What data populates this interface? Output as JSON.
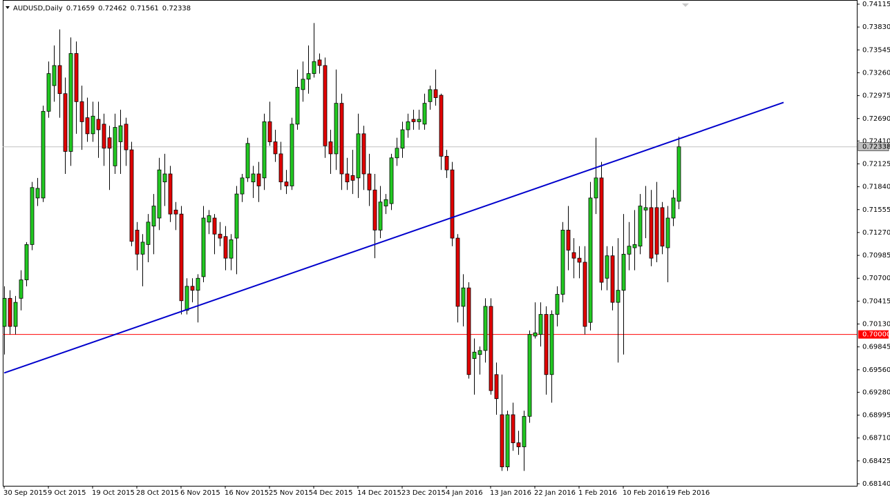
{
  "chart_data": {
    "type": "candlestick",
    "title": "AUDUSD,Daily",
    "up_color": "#22c822",
    "down_color": "#e00000",
    "categories": [
      "30 Sep 2015",
      null,
      null,
      null,
      null,
      null,
      null,
      null,
      "9 Oct 2015",
      null,
      null,
      null,
      null,
      null,
      null,
      null,
      "19 Oct 2015",
      null,
      null,
      null,
      null,
      null,
      null,
      null,
      "28 Oct 2015",
      null,
      null,
      null,
      null,
      null,
      null,
      null,
      "6 Nov 2015",
      null,
      null,
      null,
      null,
      null,
      null,
      null,
      "16 Nov 2015",
      null,
      null,
      null,
      null,
      null,
      null,
      null,
      "25 Nov 2015",
      null,
      null,
      null,
      null,
      null,
      null,
      null,
      "4 Dec 2015",
      null,
      null,
      null,
      null,
      null,
      null,
      null,
      "14 Dec 2015",
      null,
      null,
      null,
      null,
      null,
      null,
      null,
      "23 Dec 2015",
      null,
      null,
      null,
      null,
      null,
      null,
      null,
      "4 Jan 2016",
      null,
      null,
      null,
      null,
      null,
      null,
      null,
      "13 Jan 2016",
      null,
      null,
      null,
      null,
      null,
      null,
      null,
      "22 Jan 2016",
      null,
      null,
      null,
      null,
      null,
      null,
      null,
      "1 Feb 2016",
      null,
      null,
      null,
      null,
      null,
      null,
      null,
      "10 Feb 2016",
      null,
      null,
      null,
      null,
      null,
      null,
      null,
      "19 Feb 2016",
      null,
      null
    ],
    "open": [
      0.701,
      0.7045,
      0.701,
      0.7045,
      0.7068,
      0.7112,
      0.717,
      0.717,
      0.7278,
      0.731,
      0.7335,
      0.73,
      0.7228,
      0.735,
      0.729,
      0.727,
      0.725,
      0.7268,
      0.7262,
      0.7245,
      0.721,
      0.724,
      0.7262,
      0.723,
      0.713,
      0.71,
      0.7112,
      0.7135,
      0.7145,
      0.719,
      0.72,
      0.7155,
      0.715,
      0.703,
      0.706,
      0.7055,
      0.7072,
      0.714,
      0.7145,
      0.7125,
      0.7122,
      0.7095,
      0.712,
      0.7175,
      0.7195,
      0.719,
      0.72,
      0.7195,
      0.7265,
      0.724,
      0.7225,
      0.719,
      0.7185,
      0.7262,
      0.7305,
      0.7318,
      0.7325,
      0.7342,
      0.7335,
      0.724,
      0.7225,
      0.7288,
      0.72,
      0.7198,
      0.7195,
      0.725,
      0.72,
      0.718,
      0.713,
      0.716,
      0.7163,
      0.722,
      0.7232,
      0.7255,
      0.7268,
      0.7265,
      0.7262,
      0.729,
      0.7305,
      0.7298,
      0.7222,
      0.7205,
      0.712,
      0.7035,
      0.7058,
      0.697,
      0.6975,
      0.698,
      0.7035,
      0.695,
      0.69,
      0.6835,
      0.69,
      0.6865,
      0.686,
      0.6898,
      0.6998,
      0.7,
      0.7025,
      0.695,
      0.7025,
      0.705,
      0.713,
      0.7102,
      0.7095,
      0.709,
      0.7015,
      0.717,
      0.7195,
      0.707,
      0.7098,
      0.704,
      0.7055,
      0.71,
      0.7108,
      0.711,
      0.7155,
      0.7158,
      0.7158,
      0.7158,
      0.7108,
      0.7145,
      0.71659
    ],
    "high": [
      0.706,
      0.7055,
      0.7048,
      0.708,
      0.7115,
      0.719,
      0.7195,
      0.7285,
      0.734,
      0.736,
      0.738,
      0.732,
      0.737,
      0.7365,
      0.731,
      0.7295,
      0.729,
      0.729,
      0.7275,
      0.726,
      0.7275,
      0.728,
      0.727,
      0.724,
      0.714,
      0.7125,
      0.715,
      0.7175,
      0.722,
      0.7225,
      0.721,
      0.7165,
      0.716,
      0.707,
      0.707,
      0.7075,
      0.716,
      0.7155,
      0.715,
      0.714,
      0.7135,
      0.7125,
      0.7185,
      0.72,
      0.7245,
      0.721,
      0.7215,
      0.7275,
      0.729,
      0.7255,
      0.724,
      0.7205,
      0.727,
      0.733,
      0.734,
      0.736,
      0.7388,
      0.735,
      0.7345,
      0.7255,
      0.733,
      0.73,
      0.722,
      0.723,
      0.7275,
      0.726,
      0.7225,
      0.72,
      0.7185,
      0.7175,
      0.7225,
      0.7245,
      0.7265,
      0.7275,
      0.728,
      0.728,
      0.73,
      0.731,
      0.733,
      0.73,
      0.723,
      0.7215,
      0.7125,
      0.7075,
      0.7065,
      0.6995,
      0.6985,
      0.7045,
      0.7045,
      0.6965,
      0.695,
      0.6905,
      0.6915,
      0.688,
      0.6905,
      0.7005,
      0.704,
      0.704,
      0.7035,
      0.703,
      0.706,
      0.714,
      0.716,
      0.712,
      0.711,
      0.711,
      0.719,
      0.7245,
      0.7215,
      0.711,
      0.711,
      0.712,
      0.715,
      0.714,
      0.7155,
      0.7175,
      0.7185,
      0.718,
      0.719,
      0.7165,
      0.716,
      0.718,
      0.72462
    ],
    "low": [
      0.6975,
      0.7,
      0.7,
      0.703,
      0.706,
      0.7105,
      0.716,
      0.7165,
      0.727,
      0.729,
      0.727,
      0.72,
      0.721,
      0.725,
      0.723,
      0.724,
      0.724,
      0.722,
      0.721,
      0.718,
      0.72,
      0.72,
      0.721,
      0.711,
      0.708,
      0.706,
      0.709,
      0.71,
      0.713,
      0.716,
      0.714,
      0.713,
      0.7025,
      0.7025,
      0.704,
      0.7015,
      0.7065,
      0.7125,
      0.71,
      0.711,
      0.708,
      0.708,
      0.7075,
      0.7165,
      0.719,
      0.717,
      0.7165,
      0.718,
      0.7235,
      0.7215,
      0.718,
      0.7175,
      0.718,
      0.7255,
      0.729,
      0.73,
      0.732,
      0.7325,
      0.722,
      0.72,
      0.7205,
      0.718,
      0.718,
      0.7175,
      0.717,
      0.718,
      0.716,
      0.7095,
      0.712,
      0.715,
      0.7155,
      0.721,
      0.722,
      0.7245,
      0.7255,
      0.7255,
      0.7255,
      0.728,
      0.7285,
      0.7205,
      0.7195,
      0.711,
      0.7015,
      0.701,
      0.6945,
      0.6925,
      0.695,
      0.6965,
      0.6925,
      0.69,
      0.683,
      0.683,
      0.6855,
      0.685,
      0.683,
      0.689,
      0.6995,
      0.6985,
      0.6925,
      0.6915,
      0.701,
      0.704,
      0.708,
      0.707,
      0.707,
      0.7,
      0.7005,
      0.715,
      0.7055,
      0.7055,
      0.703,
      0.6965,
      0.6975,
      0.708,
      0.708,
      0.71,
      0.712,
      0.7085,
      0.709,
      0.71,
      0.7065,
      0.7135,
      0.71561
    ],
    "close": [
      0.7045,
      0.701,
      0.704,
      0.7068,
      0.7112,
      0.7183,
      0.7182,
      0.7278,
      0.7325,
      0.7335,
      0.73,
      0.7228,
      0.735,
      0.729,
      0.7265,
      0.725,
      0.7272,
      0.7255,
      0.7232,
      0.7232,
      0.7258,
      0.726,
      0.723,
      0.7116,
      0.71,
      0.7115,
      0.714,
      0.716,
      0.7205,
      0.72,
      0.715,
      0.715,
      0.7042,
      0.706,
      0.7055,
      0.707,
      0.7145,
      0.7148,
      0.7125,
      0.712,
      0.7095,
      0.7118,
      0.7175,
      0.7195,
      0.7238,
      0.72,
      0.7185,
      0.7265,
      0.724,
      0.7225,
      0.719,
      0.7185,
      0.7262,
      0.7308,
      0.7318,
      0.7325,
      0.734,
      0.7335,
      0.7235,
      0.7225,
      0.7288,
      0.72,
      0.719,
      0.7192,
      0.725,
      0.72,
      0.718,
      0.713,
      0.7165,
      0.7168,
      0.722,
      0.7232,
      0.7255,
      0.7265,
      0.7265,
      0.7268,
      0.7288,
      0.7305,
      0.7295,
      0.7222,
      0.7205,
      0.712,
      0.7035,
      0.7058,
      0.695,
      0.6978,
      0.698,
      0.7035,
      0.693,
      0.692,
      0.6835,
      0.69,
      0.6865,
      0.686,
      0.6898,
      0.7,
      0.7002,
      0.7025,
      0.695,
      0.7025,
      0.705,
      0.713,
      0.7105,
      0.7095,
      0.709,
      0.701,
      0.717,
      0.7195,
      0.7065,
      0.7098,
      0.704,
      0.7055,
      0.71,
      0.711,
      0.7112,
      0.716,
      0.7158,
      0.7095,
      0.71,
      0.711,
      0.7145,
      0.717,
      0.72338
    ],
    "ylim": [
      0.6814,
      0.74115
    ],
    "yticks": [
      0.74115,
      {
        "value": 0.7383,
        "label": "0.73830"
      },
      0.73545,
      {
        "value": 0.7326,
        "label": "0.73260"
      },
      0.72975,
      {
        "value": 0.7269,
        "label": "0.72690"
      },
      {
        "value": 0.7241,
        "label": "0.72410"
      },
      0.72125,
      {
        "value": 0.7184,
        "label": "0.71840"
      },
      0.71555,
      {
        "value": 0.7127,
        "label": "0.71270"
      },
      0.70985,
      {
        "value": 0.707,
        "label": "0.70700"
      },
      0.70415,
      {
        "value": 0.7013,
        "label": "0.70130"
      },
      0.69845,
      {
        "value": 0.6956,
        "label": "0.69560"
      },
      {
        "value": 0.6928,
        "label": "0.69280"
      },
      0.68995,
      {
        "value": 0.6871,
        "label": "0.68710"
      },
      0.68425,
      {
        "value": 0.6814,
        "label": "0.68140"
      }
    ],
    "levels": [
      {
        "value": 0.7,
        "label": "0.70000",
        "color": "#ff0000"
      }
    ],
    "price_line_color": "#c0c0c0",
    "trendline": {
      "color": "#0000cc",
      "values": [
        0.6952,
        0.7289
      ],
      "bars": [
        0,
        141
      ]
    }
  }
}
